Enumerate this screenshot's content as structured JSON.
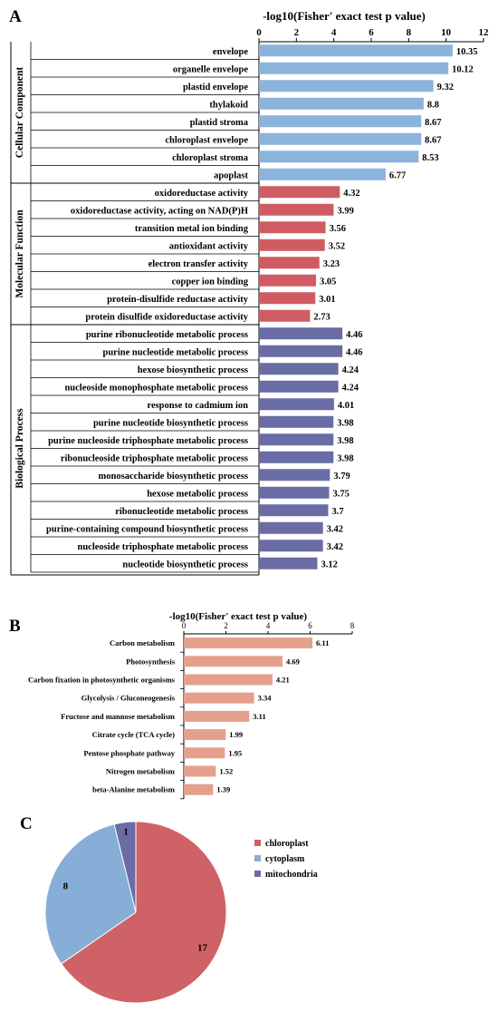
{
  "chart_data": [
    {
      "panel": "A",
      "type": "bar",
      "orientation": "horizontal",
      "title": "-log10(Fisher' exact test p value)",
      "xlim": [
        0,
        12
      ],
      "ticks": [
        "0",
        "2",
        "4",
        "6",
        "8",
        "10",
        "12"
      ],
      "groups": [
        {
          "name": "Cellular Component",
          "color": "#8cb3dc",
          "categories": [
            "envelope",
            "organelle envelope",
            "plastid envelope",
            "thylakoid",
            "plastid stroma",
            "chloroplast envelope",
            "chloroplast stroma",
            "apoplast"
          ],
          "values": [
            10.35,
            10.12,
            9.32,
            8.8,
            8.67,
            8.67,
            8.53,
            6.77
          ],
          "labels": [
            "10.35",
            "10.12",
            "9.32",
            "8.8",
            "8.67",
            "8.67",
            "8.53",
            "6.77"
          ]
        },
        {
          "name": "Molecular Function",
          "color": "#d05c63",
          "categories": [
            "oxidoreductase activity",
            "oxidoreductase activity, acting on NAD(P)H",
            "transition metal ion binding",
            "antioxidant activity",
            "electron transfer activity",
            "copper ion binding",
            "protein-disulfide reductase activity",
            "protein disulfide oxidoreductase activity"
          ],
          "values": [
            4.32,
            3.99,
            3.56,
            3.52,
            3.23,
            3.05,
            3.01,
            2.73
          ],
          "labels": [
            "4.32",
            "3.99",
            "3.56",
            "3.52",
            "3.23",
            "3.05",
            "3.01",
            "2.73"
          ]
        },
        {
          "name": "Biological Process",
          "color": "#6a6ca6",
          "categories": [
            "purine ribonucleotide metabolic process",
            "purine nucleotide metabolic process",
            "hexose biosynthetic process",
            "nucleoside monophosphate metabolic process",
            "response to cadmium ion",
            "purine nucleotide biosynthetic process",
            "purine nucleoside triphosphate metabolic process",
            "ribonucleoside triphosphate metabolic process",
            "monosaccharide biosynthetic process",
            "hexose metabolic process",
            "ribonucleotide metabolic process",
            "purine-containing compound biosynthetic process",
            "nucleoside triphosphate metabolic process",
            "nucleotide biosynthetic process"
          ],
          "values": [
            4.46,
            4.46,
            4.24,
            4.24,
            4.01,
            3.98,
            3.98,
            3.98,
            3.79,
            3.75,
            3.7,
            3.42,
            3.42,
            3.12
          ],
          "labels": [
            "4.46",
            "4.46",
            "4.24",
            "4.24",
            "4.01",
            "3.98",
            "3.98",
            "3.98",
            "3.79",
            "3.75",
            "3.7",
            "3.42",
            "3.42",
            "3.12"
          ]
        }
      ]
    },
    {
      "panel": "B",
      "type": "bar",
      "orientation": "horizontal",
      "title": "-log10(Fisher' exact test p value)",
      "xlim": [
        0,
        8
      ],
      "ticks": [
        "0",
        "2",
        "4",
        "6",
        "8"
      ],
      "color": "#e4a08c",
      "categories": [
        "Carbon metabolism",
        "Photosynthesis",
        "Carbon fixation in photosynthetic organisms",
        "Glycolysis / Gluconeogenesis",
        "Fructose and mannose metabolism",
        "Citrate cycle (TCA cycle)",
        "Pentose phosphate pathway",
        "Nitrogen metabolism",
        "beta-Alanine metabolism"
      ],
      "values": [
        6.11,
        4.69,
        4.21,
        3.34,
        3.11,
        1.99,
        1.95,
        1.52,
        1.39
      ],
      "labels": [
        "6.11",
        "4.69",
        "4.21",
        "3.34",
        "3.11",
        "1.99",
        "1.95",
        "1.52",
        "1.39"
      ]
    },
    {
      "panel": "C",
      "type": "pie",
      "legend_position": "right",
      "slices": [
        {
          "name": "chloroplast",
          "value": 17,
          "label": "17",
          "color": "#cf6267"
        },
        {
          "name": "cytoplasm",
          "value": 8,
          "label": "8",
          "color": "#86aed6"
        },
        {
          "name": "mitochondria",
          "value": 1,
          "label": "1",
          "color": "#6a6ca6"
        }
      ]
    }
  ]
}
